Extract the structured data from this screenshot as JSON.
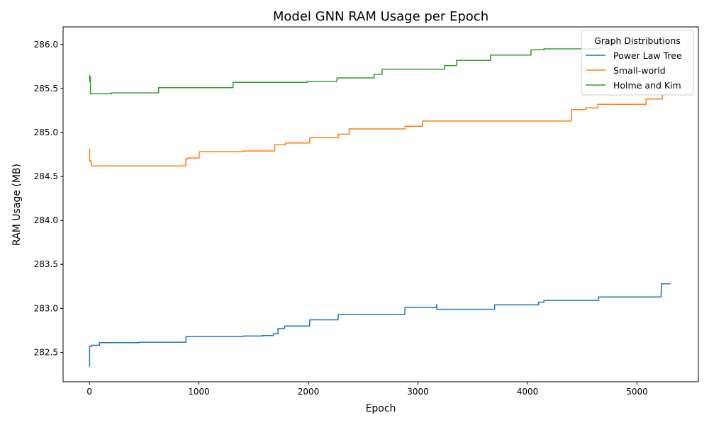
{
  "chart_data": {
    "type": "line",
    "title": "Model GNN RAM Usage per Epoch",
    "xlabel": "Epoch",
    "ylabel": "RAM Usage (MB)",
    "xlim": [
      -240,
      5560
    ],
    "ylim": [
      282.165,
      286.2
    ],
    "xticks": [
      0,
      1000,
      2000,
      3000,
      4000,
      5000
    ],
    "yticks": [
      282.5,
      283.0,
      283.5,
      284.0,
      284.5,
      285.0,
      285.5,
      286.0
    ],
    "ytick_labels": [
      "282.5",
      "283.0",
      "283.5",
      "284.0",
      "284.5",
      "285.0",
      "285.5",
      "286.0"
    ],
    "grid": false,
    "legend": {
      "title": "Graph Distributions",
      "position": "top-right"
    },
    "series": [
      {
        "name": "Power Law Tree",
        "color": "#1f77b4",
        "points": [
          [
            0,
            282.34
          ],
          [
            2,
            282.57
          ],
          [
            20,
            282.58
          ],
          [
            90,
            282.58
          ],
          [
            92,
            282.61
          ],
          [
            450,
            282.61
          ],
          [
            452,
            282.615
          ],
          [
            880,
            282.62
          ],
          [
            882,
            282.68
          ],
          [
            1400,
            282.68
          ],
          [
            1402,
            282.685
          ],
          [
            1580,
            282.69
          ],
          [
            1680,
            282.71
          ],
          [
            1720,
            282.71
          ],
          [
            1722,
            282.77
          ],
          [
            1780,
            282.78
          ],
          [
            1782,
            282.8
          ],
          [
            2010,
            282.82
          ],
          [
            2012,
            282.87
          ],
          [
            2270,
            282.89
          ],
          [
            2272,
            282.93
          ],
          [
            2880,
            282.99
          ],
          [
            2882,
            283.01
          ],
          [
            3170,
            283.04
          ],
          [
            3172,
            282.99
          ],
          [
            3700,
            283.04
          ],
          [
            4100,
            283.07
          ],
          [
            4150,
            283.09
          ],
          [
            4650,
            283.13
          ],
          [
            5220,
            283.19
          ],
          [
            5222,
            283.28
          ],
          [
            5300,
            283.29
          ]
        ]
      },
      {
        "name": "Small-world",
        "color": "#ff7f0e",
        "points": [
          [
            0,
            284.81
          ],
          [
            2,
            284.68
          ],
          [
            10,
            284.67
          ],
          [
            20,
            284.62
          ],
          [
            880,
            284.7
          ],
          [
            900,
            284.71
          ],
          [
            1000,
            284.72
          ],
          [
            1002,
            284.78
          ],
          [
            1400,
            284.78
          ],
          [
            1402,
            284.79
          ],
          [
            1690,
            284.8
          ],
          [
            1692,
            284.86
          ],
          [
            1790,
            284.86
          ],
          [
            1792,
            284.88
          ],
          [
            2010,
            284.88
          ],
          [
            2012,
            284.94
          ],
          [
            2270,
            284.94
          ],
          [
            2272,
            284.98
          ],
          [
            2370,
            284.98
          ],
          [
            2372,
            285.04
          ],
          [
            2880,
            285.04
          ],
          [
            2882,
            285.07
          ],
          [
            3040,
            285.07
          ],
          [
            3042,
            285.13
          ],
          [
            3650,
            285.13
          ],
          [
            4400,
            285.2
          ],
          [
            4402,
            285.26
          ],
          [
            4530,
            285.26
          ],
          [
            4532,
            285.28
          ],
          [
            4640,
            285.28
          ],
          [
            4642,
            285.32
          ],
          [
            5080,
            285.32
          ],
          [
            5082,
            285.38
          ],
          [
            5230,
            285.38
          ],
          [
            5232,
            285.43
          ],
          [
            5300,
            285.44
          ]
        ]
      },
      {
        "name": "Holme and Kim",
        "color": "#2ca02c",
        "points": [
          [
            0,
            285.65
          ],
          [
            2,
            285.58
          ],
          [
            6,
            285.63
          ],
          [
            10,
            285.44
          ],
          [
            200,
            285.45
          ],
          [
            630,
            285.45
          ],
          [
            632,
            285.51
          ],
          [
            1310,
            285.51
          ],
          [
            1312,
            285.57
          ],
          [
            1560,
            285.57
          ],
          [
            1990,
            285.58
          ],
          [
            2260,
            285.6
          ],
          [
            2262,
            285.62
          ],
          [
            2600,
            285.66
          ],
          [
            2670,
            285.66
          ],
          [
            2672,
            285.72
          ],
          [
            3240,
            285.72
          ],
          [
            3242,
            285.76
          ],
          [
            3350,
            285.76
          ],
          [
            3352,
            285.82
          ],
          [
            3660,
            285.82
          ],
          [
            3662,
            285.88
          ],
          [
            4030,
            285.88
          ],
          [
            4032,
            285.94
          ],
          [
            4150,
            285.95
          ],
          [
            4640,
            285.95
          ],
          [
            4642,
            285.96
          ],
          [
            4680,
            285.96
          ],
          [
            4682,
            286.0
          ],
          [
            5300,
            286.0
          ]
        ]
      }
    ]
  }
}
